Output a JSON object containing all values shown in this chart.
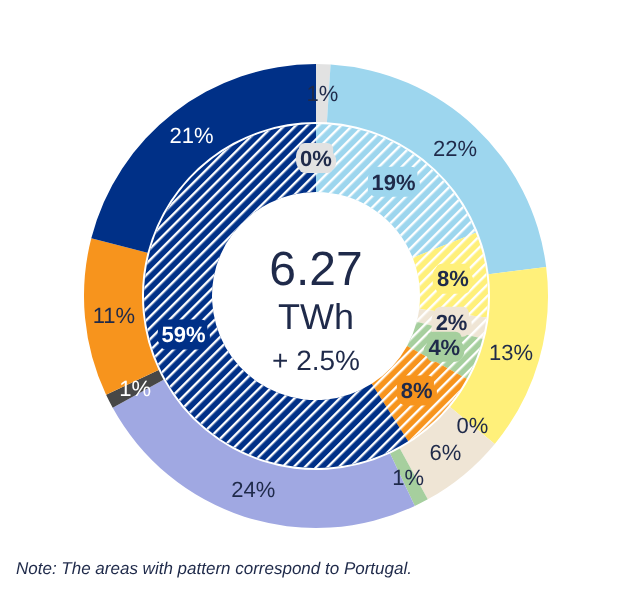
{
  "chart_data": [
    {
      "type": "donut",
      "categories": [
        null,
        null,
        null,
        null,
        null,
        null,
        null,
        null,
        null,
        null
      ],
      "colors": [
        "#e2e2e2",
        "#9dd6ee",
        "#fff07a",
        "#f2c800",
        "#efe5d5",
        "#a6cf9e",
        "#a0a8e2",
        "#474747",
        "#f7941d",
        "#003087"
      ],
      "values": [
        1,
        22,
        13,
        0,
        6,
        1,
        24,
        1,
        11,
        21
      ],
      "value_labels": [
        "1%",
        "22%",
        "13%",
        "0%",
        "6%",
        "1%",
        "24%",
        "1%",
        "11%",
        "21%"
      ],
      "annotations": [
        "6.27",
        "TWh",
        "+ 2.5%",
        "Note: The  areas with pattern correspond  to Portugal."
      ]
    },
    {
      "type": "donut",
      "categories": [
        null,
        null,
        null,
        null,
        null,
        null,
        null
      ],
      "colors": [
        "#e2e2e2",
        "#9dd6ee",
        "#fff07a",
        "#efe5d5",
        "#a6cf9e",
        "#f7941d",
        "#003087"
      ],
      "values": [
        0,
        19,
        8,
        2,
        4,
        8,
        59
      ],
      "value_labels": [
        "0%",
        "19%",
        "8%",
        "2%",
        "4%",
        "8%",
        "59%"
      ]
    }
  ]
}
